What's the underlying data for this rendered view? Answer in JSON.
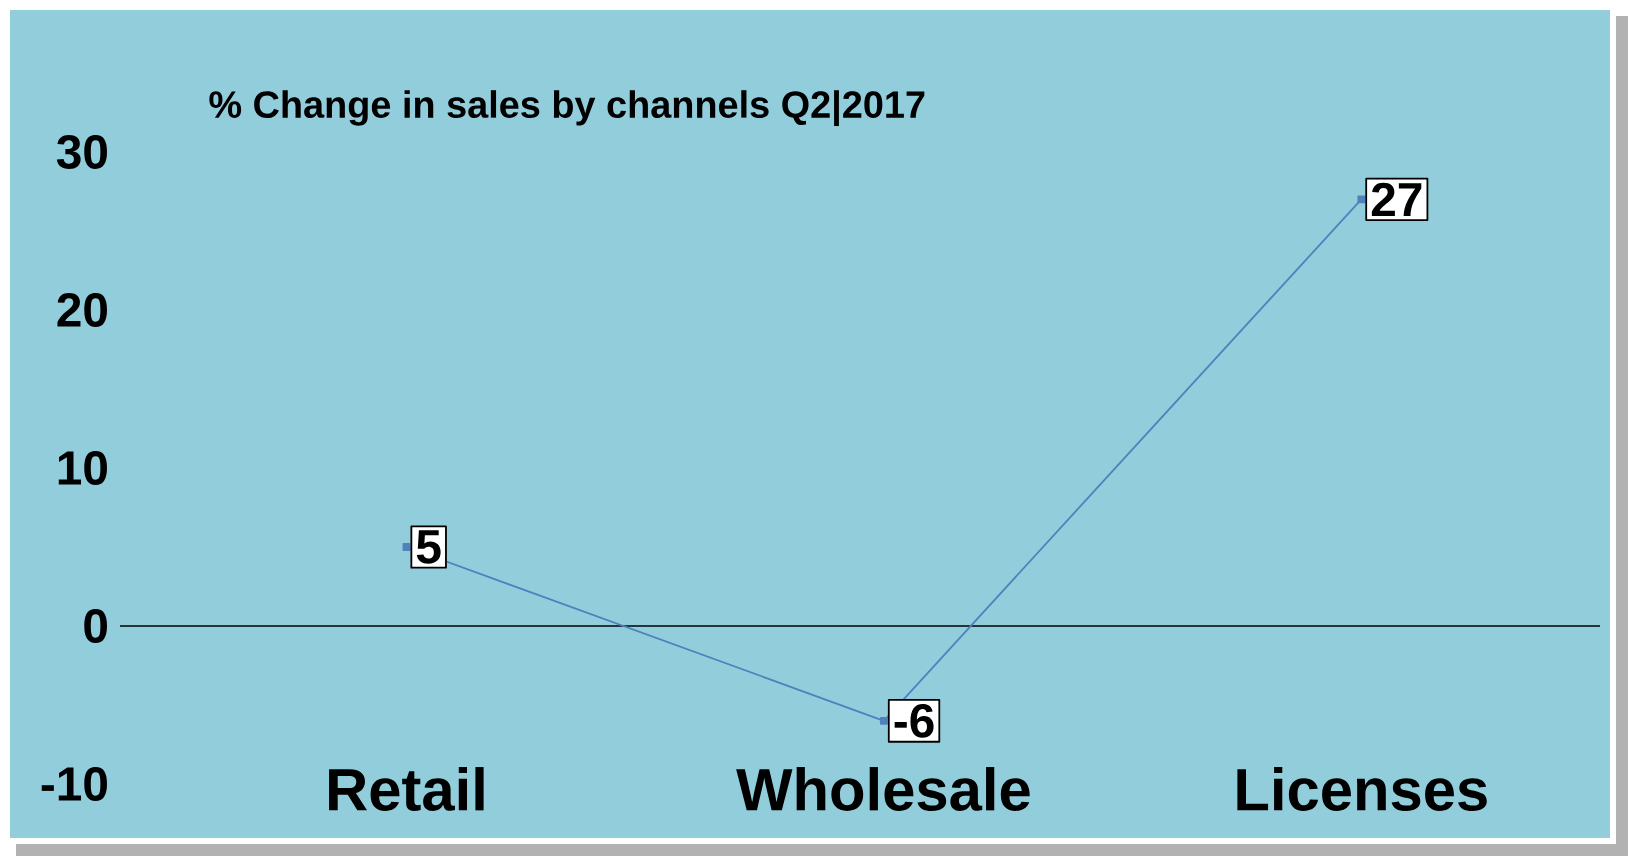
{
  "chart_data": {
    "type": "line",
    "title": "% Change in sales by channels Q2|2017",
    "categories": [
      "Retail",
      "Wholesale",
      "Licenses"
    ],
    "values": [
      5,
      -6,
      27
    ],
    "color": "#4f81bd",
    "ylim": [
      -10,
      30
    ],
    "yticks": [
      -10,
      0,
      10,
      20,
      30
    ],
    "data_labels": true,
    "marker": "square"
  }
}
